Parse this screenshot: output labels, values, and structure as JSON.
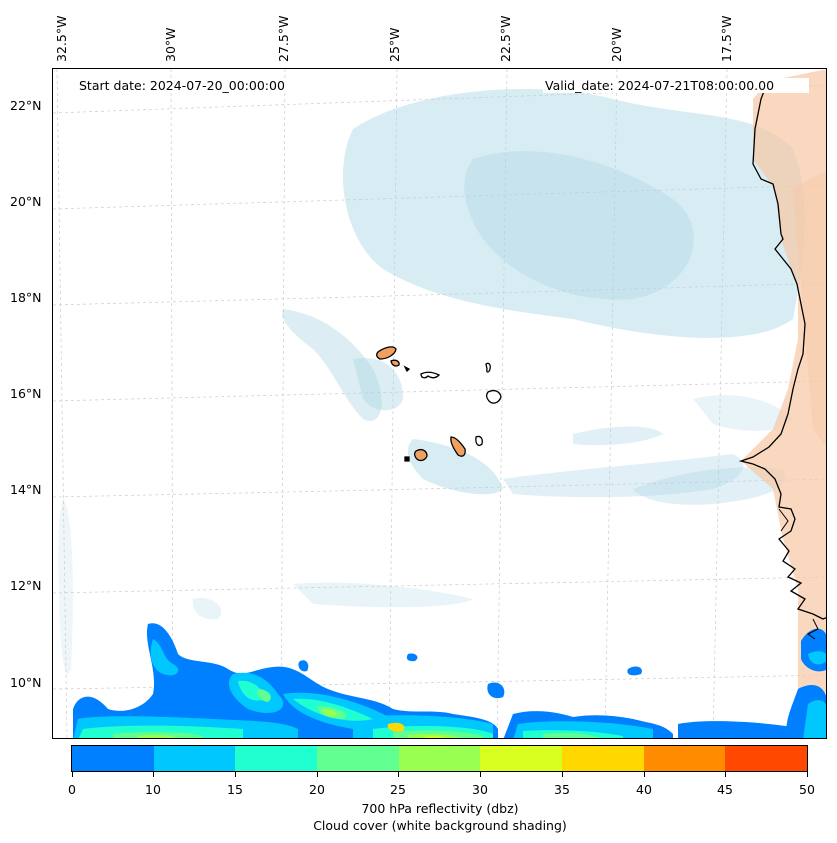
{
  "header": {
    "start_date": "Start date: 2024-07-20_00:00:00",
    "valid_date": "Valid_date: 2024-07-21T08:00:00.00"
  },
  "axes": {
    "longitude_labels": [
      "32.5°W",
      "30°W",
      "27.5°W",
      "25°W",
      "22.5°W",
      "20°W",
      "17.5°W"
    ],
    "latitude_labels": [
      "22°N",
      "20°N",
      "18°N",
      "16°N",
      "14°N",
      "12°N",
      "10°N"
    ]
  },
  "colorbar": {
    "ticks": [
      "0",
      "10",
      "15",
      "20",
      "25",
      "30",
      "35",
      "40",
      "45",
      "50"
    ],
    "colors": [
      "#0080ff",
      "#00c8ff",
      "#20ffd0",
      "#60ff90",
      "#98ff50",
      "#d8ff20",
      "#ffd800",
      "#ff8c00",
      "#ff4800"
    ],
    "label_line1": "700 hPa reflectivity (dbz)",
    "label_line2": "Cloud cover (white background shading)"
  },
  "colors": {
    "cloud": "#a8d4e4",
    "land_heat": "#f6c8a4",
    "island": "#f0a060",
    "coast": "#000000"
  }
}
